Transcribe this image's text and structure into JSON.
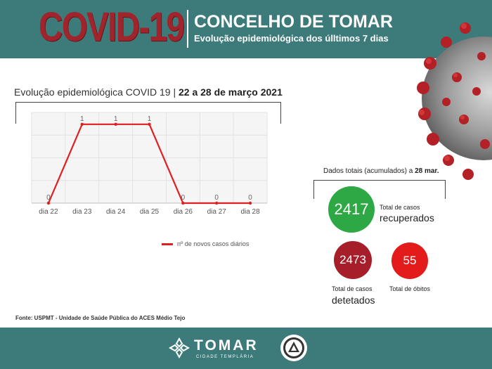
{
  "header": {
    "title": "COVID-19",
    "place": "CONCELHO DE TOMAR",
    "subtitle": "Evolução epidemiológica dos úlltimos 7 dias"
  },
  "chart_title": {
    "prefix": "Evolução epidemiológica COVID 19 | ",
    "range": "22 a 28 de março 2021"
  },
  "chart_data": {
    "type": "line",
    "categories": [
      "dia 22",
      "dia 23",
      "dia 24",
      "dia 25",
      "dia 26",
      "dia 27",
      "dia 28"
    ],
    "series": [
      {
        "name": "nº de novos casos diários",
        "values": [
          0,
          1,
          1,
          1,
          0,
          0,
          0
        ],
        "color": "#e02020"
      }
    ],
    "ylim": [
      0,
      1.15
    ],
    "grid": true,
    "legend_position": "bottom-right"
  },
  "totals": {
    "label_prefix": "Dados totais (acumulados) a ",
    "label_date": "28 mar.",
    "recuperados": {
      "value": "2417",
      "label_1": "Total de casos",
      "label_2": "recuperados",
      "color": "#2ea844"
    },
    "detetados": {
      "value": "2473",
      "label_1": "Total de casos",
      "label_2": "detetados",
      "color": "#a51e2a"
    },
    "obitos": {
      "value": "55",
      "label": "Total de óbitos",
      "color": "#e41b1b"
    }
  },
  "source": "Fonte: USPMT - Unidade de Saúde Pública do ACES Médio Tejo",
  "footer": {
    "brand": "TOMAR",
    "brand_sub": "CIDADE TEMPLÁRIA"
  },
  "icons": [
    "virus-icon",
    "tomar-cross-icon",
    "municipal-seal-icon"
  ]
}
